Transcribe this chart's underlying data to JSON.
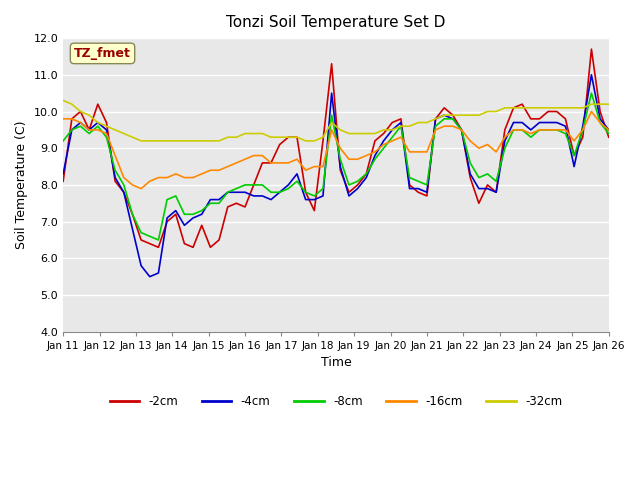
{
  "title": "Tonzi Soil Temperature Set D",
  "xlabel": "Time",
  "ylabel": "Soil Temperature (C)",
  "ylim": [
    4.0,
    12.0
  ],
  "yticks": [
    4.0,
    5.0,
    6.0,
    7.0,
    8.0,
    9.0,
    10.0,
    11.0,
    12.0
  ],
  "xtick_labels": [
    "Jan 11",
    "Jan 12",
    "Jan 13",
    "Jan 14",
    "Jan 15",
    "Jan 16",
    "Jan 17",
    "Jan 18",
    "Jan 19",
    "Jan 20",
    "Jan 21",
    "Jan 22",
    "Jan 23",
    "Jan 24",
    "Jan 25",
    "Jan 26"
  ],
  "colors": {
    "-2cm": "#cc0000",
    "-4cm": "#0000cc",
    "-8cm": "#00cc00",
    "-16cm": "#ff8800",
    "-32cm": "#cccc00"
  },
  "legend_labels": [
    "-2cm",
    "-4cm",
    "-8cm",
    "-16cm",
    "-32cm"
  ],
  "label_box_text": "TZ_fmet",
  "label_box_bg": "#ffffcc",
  "label_box_fg": "#990000",
  "background_color": "#e8e8e8",
  "series": {
    "-2cm": [
      8.1,
      9.8,
      10.0,
      9.5,
      10.2,
      9.7,
      8.1,
      7.8,
      7.2,
      6.5,
      6.4,
      6.3,
      7.0,
      7.2,
      6.4,
      6.3,
      6.9,
      6.3,
      6.5,
      7.4,
      7.5,
      7.4,
      8.0,
      8.6,
      8.6,
      9.1,
      9.3,
      9.3,
      7.8,
      7.3,
      9.2,
      11.3,
      8.4,
      7.8,
      8.0,
      8.3,
      9.2,
      9.4,
      9.7,
      9.8,
      8.0,
      7.8,
      7.7,
      9.8,
      10.1,
      9.9,
      9.5,
      8.2,
      7.5,
      8.0,
      7.8,
      9.5,
      10.1,
      10.2,
      9.8,
      9.8,
      10.0,
      10.0,
      9.8,
      8.8,
      9.3,
      11.7,
      10.0,
      9.3
    ],
    "-4cm": [
      8.3,
      9.5,
      9.7,
      9.5,
      9.7,
      9.5,
      8.2,
      7.8,
      6.8,
      5.8,
      5.5,
      5.6,
      7.1,
      7.3,
      6.9,
      7.1,
      7.2,
      7.6,
      7.6,
      7.8,
      7.8,
      7.8,
      7.7,
      7.7,
      7.6,
      7.8,
      8.0,
      8.3,
      7.6,
      7.6,
      7.7,
      10.5,
      8.5,
      7.7,
      7.9,
      8.2,
      8.8,
      9.2,
      9.5,
      9.7,
      7.9,
      7.9,
      7.8,
      9.8,
      9.9,
      9.8,
      9.5,
      8.3,
      7.9,
      7.9,
      7.8,
      9.2,
      9.7,
      9.7,
      9.5,
      9.7,
      9.7,
      9.7,
      9.6,
      8.5,
      9.6,
      11.0,
      9.8,
      9.5
    ],
    "-8cm": [
      9.2,
      9.5,
      9.6,
      9.4,
      9.6,
      9.3,
      8.4,
      8.0,
      7.2,
      6.7,
      6.6,
      6.5,
      7.6,
      7.7,
      7.2,
      7.2,
      7.3,
      7.5,
      7.5,
      7.8,
      7.9,
      8.0,
      8.0,
      8.0,
      7.8,
      7.8,
      7.9,
      8.1,
      7.8,
      7.7,
      7.9,
      9.9,
      8.7,
      8.0,
      8.1,
      8.3,
      8.7,
      9.0,
      9.3,
      9.6,
      8.2,
      8.1,
      8.0,
      9.6,
      9.8,
      9.8,
      9.5,
      8.6,
      8.2,
      8.3,
      8.1,
      9.0,
      9.5,
      9.5,
      9.3,
      9.5,
      9.5,
      9.5,
      9.4,
      8.8,
      9.5,
      10.5,
      9.7,
      9.4
    ],
    "-16cm": [
      9.8,
      9.8,
      9.7,
      9.5,
      9.5,
      9.4,
      8.8,
      8.2,
      8.0,
      7.9,
      8.1,
      8.2,
      8.2,
      8.3,
      8.2,
      8.2,
      8.3,
      8.4,
      8.4,
      8.5,
      8.6,
      8.7,
      8.8,
      8.8,
      8.6,
      8.6,
      8.6,
      8.7,
      8.4,
      8.5,
      8.5,
      9.5,
      9.0,
      8.7,
      8.7,
      8.8,
      8.9,
      9.1,
      9.2,
      9.3,
      8.9,
      8.9,
      8.9,
      9.5,
      9.6,
      9.6,
      9.5,
      9.2,
      9.0,
      9.1,
      8.9,
      9.3,
      9.5,
      9.5,
      9.4,
      9.5,
      9.5,
      9.5,
      9.5,
      9.2,
      9.5,
      10.0,
      9.7,
      9.5
    ],
    "-32cm": [
      10.3,
      10.2,
      10.0,
      9.9,
      9.7,
      9.6,
      9.5,
      9.4,
      9.3,
      9.2,
      9.2,
      9.2,
      9.2,
      9.2,
      9.2,
      9.2,
      9.2,
      9.2,
      9.2,
      9.3,
      9.3,
      9.4,
      9.4,
      9.4,
      9.3,
      9.3,
      9.3,
      9.3,
      9.2,
      9.2,
      9.3,
      9.7,
      9.5,
      9.4,
      9.4,
      9.4,
      9.4,
      9.5,
      9.5,
      9.6,
      9.6,
      9.7,
      9.7,
      9.8,
      9.9,
      9.9,
      9.9,
      9.9,
      9.9,
      10.0,
      10.0,
      10.1,
      10.1,
      10.1,
      10.1,
      10.1,
      10.1,
      10.1,
      10.1,
      10.1,
      10.1,
      10.2,
      10.2,
      10.2
    ]
  }
}
